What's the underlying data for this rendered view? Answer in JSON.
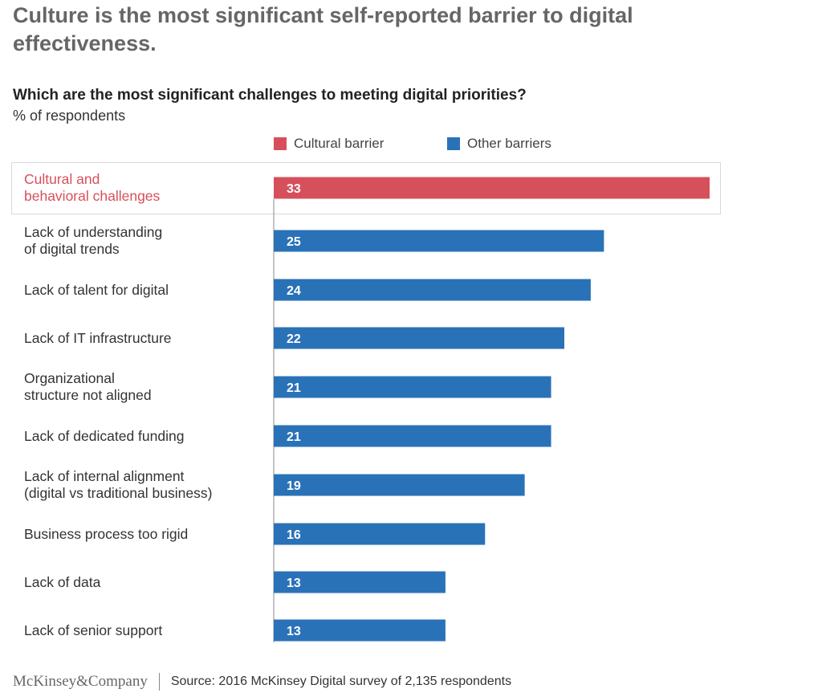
{
  "headline": "Culture is the most significant self-reported barrier to digital effectiveness.",
  "chart_data": {
    "type": "bar",
    "orientation": "horizontal",
    "title": "Which are the most significant challenges to meeting digital priorities?",
    "unit_label": "% of respondents",
    "legend": [
      {
        "name": "Cultural barrier",
        "color": "#d6505c"
      },
      {
        "name": "Other barriers",
        "color": "#2a72b8"
      }
    ],
    "categories": [
      "Cultural and\nbehavioral challenges",
      "Lack of understanding\nof digital trends",
      "Lack of talent for digital",
      "Lack of IT infrastructure",
      "Organizational\nstructure not aligned",
      "Lack of dedicated funding",
      "Lack of internal alignment\n(digital vs traditional business)",
      "Business process too rigid",
      "Lack of data",
      "Lack of senior support"
    ],
    "values": [
      33,
      25,
      24,
      22,
      21,
      21,
      19,
      16,
      13,
      13
    ],
    "groups": [
      "Cultural barrier",
      "Other barriers",
      "Other barriers",
      "Other barriers",
      "Other barriers",
      "Other barriers",
      "Other barriers",
      "Other barriers",
      "Other barriers",
      "Other barriers"
    ],
    "highlighted_category": "Cultural and\nbehavioral challenges",
    "xlim": [
      0,
      33
    ]
  },
  "footer": {
    "logo": "McKinsey&Company",
    "source": "Source: 2016 McKinsey Digital survey of 2,135 respondents"
  }
}
